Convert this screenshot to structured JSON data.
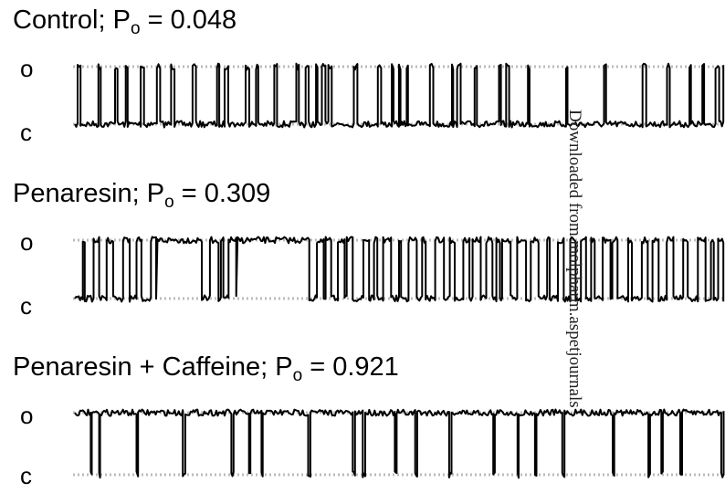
{
  "panels": [
    {
      "name": "Control",
      "po_label": "o",
      "po_value": "0.048",
      "open_label": "o",
      "closed_label": "c",
      "open_probability": 0.048,
      "trace_pattern": "brief-openings"
    },
    {
      "name": "Penaresin",
      "po_label": "o",
      "po_value": "0.309",
      "open_label": "o",
      "closed_label": "c",
      "open_probability": 0.309,
      "trace_pattern": "bursts"
    },
    {
      "name": "Penaresin + Caffeine",
      "po_label": "o",
      "po_value": "0.921",
      "open_label": "o",
      "closed_label": "c",
      "open_probability": 0.921,
      "trace_pattern": "mostly-open"
    }
  ],
  "colors": {
    "trace": "#000000",
    "reference_line": "#bbbbbb"
  },
  "watermark": "Downloaded from molpharm.aspetjournals"
}
